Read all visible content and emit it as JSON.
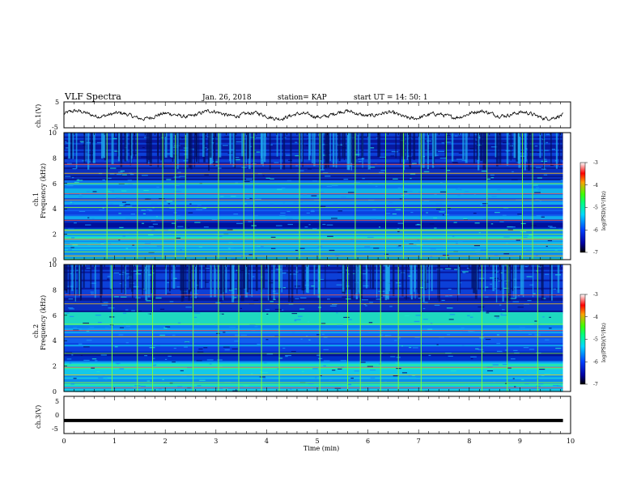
{
  "header": {
    "title": "VLF Spectra",
    "date": "Jan. 26, 2018",
    "station": "station= KAP",
    "start": "start  UT =   14: 50: 1"
  },
  "chart_data": [
    {
      "type": "line",
      "ylabel": "ch.1(V)",
      "ylim": [
        -5,
        5
      ],
      "yticks": [
        "5",
        "-5"
      ],
      "x_range": [
        0,
        10
      ],
      "x_end": 9.85,
      "description_of_values": "noisy waveform roughly between -1.5 and 1.5 V",
      "color": "#000000"
    },
    {
      "type": "heatmap",
      "ylabel": "ch.1\nFrequency (kHz)",
      "ylim": [
        0,
        10
      ],
      "yticks": [
        "0",
        "2",
        "4",
        "6",
        "8",
        "10"
      ],
      "x_range": [
        0,
        10
      ],
      "x_end": 9.85,
      "colorbar": {
        "label": "log(PSD)(V²/Hz)",
        "range": [
          -7,
          -3
        ],
        "ticks": [
          "-3",
          "-4",
          "-5",
          "-6",
          "-7"
        ]
      },
      "bands_khz": [
        0.3,
        0.6,
        1.2,
        1.6,
        2.0,
        2.3,
        3.1,
        4.1,
        4.7,
        5.2,
        6.0,
        6.8,
        7.5
      ],
      "spike_times_min": [
        0.85,
        1.45,
        1.95,
        2.2,
        2.4,
        3.05,
        3.55,
        3.75,
        4.65,
        5.05,
        5.75,
        6.35,
        6.7,
        7.05,
        7.55,
        8.35,
        9.05,
        9.25
      ]
    },
    {
      "type": "heatmap",
      "ylabel": "ch.2\nFrequency (kHz)",
      "ylim": [
        0,
        10
      ],
      "yticks": [
        "0",
        "2",
        "4",
        "6",
        "8",
        "10"
      ],
      "x_range": [
        0,
        10
      ],
      "x_end": 9.85,
      "colorbar": {
        "label": "log(PSD)(V²/Hz)",
        "range": [
          -7,
          -3
        ],
        "ticks": [
          "-3",
          "-4",
          "-5",
          "-6",
          "-7"
        ]
      },
      "bands_khz": [
        0.3,
        0.7,
        1.3,
        1.9,
        3.0,
        4.3,
        4.8,
        5.3,
        6.9,
        7.6
      ],
      "spike_times_min": [
        0.95,
        1.45,
        1.75,
        2.55,
        3.05,
        3.45,
        3.9,
        4.25,
        5.05,
        5.6,
        5.85,
        6.25,
        6.6,
        7.05,
        8.25,
        8.75,
        9.35
      ]
    },
    {
      "type": "line",
      "ylabel": "ch.3(V)",
      "ylim": [
        -5,
        5
      ],
      "yticks": [
        "5",
        "0",
        "-5"
      ],
      "x_range": [
        0,
        10
      ],
      "x_end": 9.85,
      "values_constant": -1.5,
      "color": "#000000"
    }
  ],
  "xaxis": {
    "label": "Time  (min)",
    "ticks": [
      "0",
      "1",
      "2",
      "3",
      "4",
      "5",
      "6",
      "7",
      "8",
      "9",
      "10"
    ]
  }
}
